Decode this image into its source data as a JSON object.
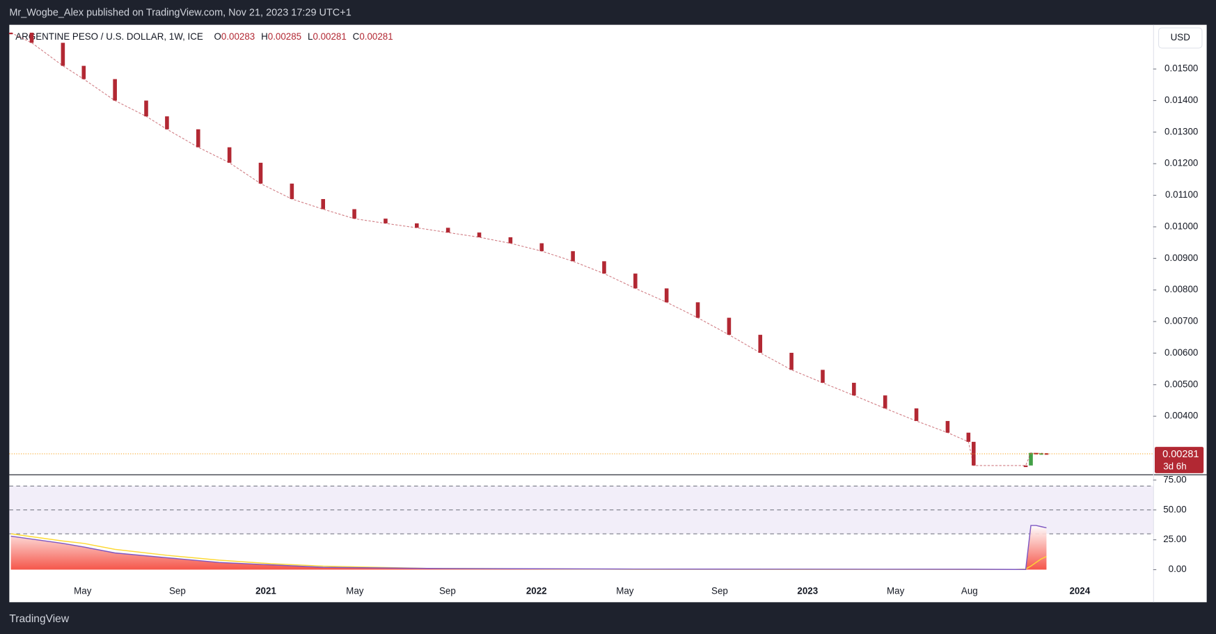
{
  "header": {
    "attribution": "Mr_Wogbe_Alex published on TradingView.com, Nov 21, 2023 17:29 UTC+1",
    "symbol": "ARGENTINE PESO / U.S. DOLLAR, 1W, ICE",
    "ohlc": [
      {
        "key": "O",
        "value": "0.00283"
      },
      {
        "key": "H",
        "value": "0.00285"
      },
      {
        "key": "L",
        "value": "0.00281"
      },
      {
        "key": "C",
        "value": "0.00281"
      }
    ],
    "currency": "USD",
    "last_price_label": "0.00281",
    "countdown": "3d 6h"
  },
  "footer": {
    "brand": "TradingView"
  },
  "chart_data": [
    {
      "type": "candlestick",
      "up_color": "#43a047",
      "down_color": "#b22833",
      "x": [
        0,
        4,
        10,
        14,
        20,
        26,
        30,
        36,
        42,
        48,
        54,
        60,
        66,
        72,
        78,
        84,
        90,
        96,
        102,
        108,
        114,
        120,
        126,
        132,
        138,
        144,
        150,
        156,
        162,
        168,
        174,
        180,
        184,
        185,
        195,
        196,
        197,
        198,
        199
      ],
      "close": [
        0.01615,
        0.01583,
        0.0151,
        0.01468,
        0.014,
        0.0135,
        0.01309,
        0.01252,
        0.01203,
        0.01137,
        0.01088,
        0.01056,
        0.01026,
        0.01011,
        0.00997,
        0.00982,
        0.00967,
        0.00948,
        0.00923,
        0.00891,
        0.00852,
        0.00805,
        0.00761,
        0.00712,
        0.00658,
        0.00601,
        0.00547,
        0.00506,
        0.00466,
        0.00425,
        0.00385,
        0.00348,
        0.00319,
        0.00244,
        0.00244,
        0.00284,
        0.00282,
        0.00283,
        0.00281
      ],
      "xlim": [
        -0.3,
        219.5
      ],
      "ylim": [
        0.00216,
        0.0164
      ],
      "yticks": [
        {
          "value": 0.004,
          "label": "0.00400"
        },
        {
          "value": 0.005,
          "label": "0.00500"
        },
        {
          "value": 0.006,
          "label": "0.00600"
        },
        {
          "value": 0.007,
          "label": "0.00700"
        },
        {
          "value": 0.008,
          "label": "0.00800"
        },
        {
          "value": 0.009,
          "label": "0.00900"
        },
        {
          "value": 0.01,
          "label": "0.01000"
        },
        {
          "value": 0.011,
          "label": "0.01100"
        },
        {
          "value": 0.012,
          "label": "0.01200"
        },
        {
          "value": 0.013,
          "label": "0.01300"
        },
        {
          "value": 0.014,
          "label": "0.01400"
        },
        {
          "value": 0.015,
          "label": "0.01500"
        }
      ]
    },
    {
      "type": "line",
      "x": [
        0,
        10,
        14,
        20,
        30,
        40,
        50,
        60,
        80,
        120,
        184,
        193,
        195,
        196,
        197,
        198,
        199
      ],
      "series": [
        {
          "name": "RSI",
          "color": "#7e57c2",
          "values": [
            28,
            22,
            19,
            14,
            10,
            6,
            4,
            2,
            1,
            0.5,
            0.3,
            0.2,
            0.2,
            37,
            37,
            36,
            35
          ]
        },
        {
          "name": "RSI MA",
          "color": "#fdd835",
          "values": [
            30,
            24,
            22,
            17,
            12,
            8,
            5,
            3,
            1,
            0.3,
            0.2,
            0.2,
            0.5,
            3,
            6,
            9,
            11
          ]
        }
      ],
      "xlim": [
        -0.3,
        219.5
      ],
      "ylim": [
        -6.5,
        78.5
      ],
      "yticks": [
        {
          "value": 0,
          "label": "0.00"
        },
        {
          "value": 25,
          "label": "25.00"
        },
        {
          "value": 50,
          "label": "50.00"
        },
        {
          "value": 75,
          "label": "75.00"
        }
      ],
      "bands": [
        30,
        50,
        70
      ],
      "xticks": [
        {
          "value": 13.8,
          "label": "May"
        },
        {
          "value": 32,
          "label": "Sep"
        },
        {
          "value": 49,
          "label": "2021"
        },
        {
          "value": 66.1,
          "label": "May"
        },
        {
          "value": 83.9,
          "label": "Sep"
        },
        {
          "value": 101,
          "label": "2022"
        },
        {
          "value": 118,
          "label": "May"
        },
        {
          "value": 136.2,
          "label": "Sep"
        },
        {
          "value": 153.1,
          "label": "2023"
        },
        {
          "value": 170,
          "label": "May"
        },
        {
          "value": 184.2,
          "label": "Aug"
        },
        {
          "value": 205.4,
          "label": "2024"
        }
      ]
    }
  ]
}
